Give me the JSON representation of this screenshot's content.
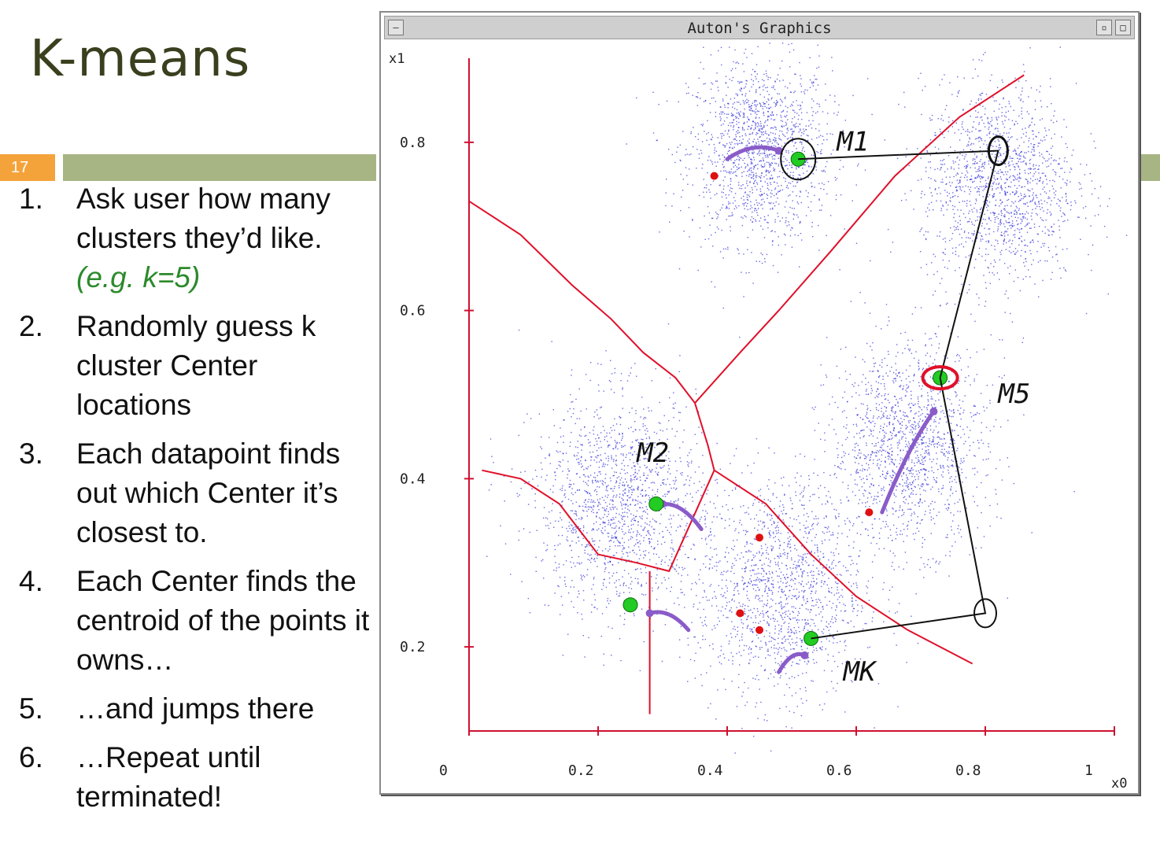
{
  "slide": {
    "title": "K-means",
    "number": "17",
    "steps": [
      {
        "num": "1.",
        "text": "Ask user how many clusters they’d like.",
        "example": "(e.g. k=5)"
      },
      {
        "num": "2.",
        "text": "Randomly guess k cluster Center locations"
      },
      {
        "num": "3.",
        "text": "Each datapoint finds out which Center it’s closest to."
      },
      {
        "num": "4.",
        "text": "Each Center finds the centroid of the points it owns…"
      },
      {
        "num": "5.",
        "text": "…and jumps there"
      },
      {
        "num": "6.",
        "text": "…Repeat until terminated!"
      }
    ]
  },
  "window": {
    "title": "Auton's Graphics",
    "minimize_icon": "minimize-icon",
    "close_icon": "close-icon"
  },
  "chart_data": {
    "type": "scatter",
    "title": "",
    "xlabel": "x0",
    "ylabel": "x1",
    "xlim": [
      0,
      1
    ],
    "ylim": [
      0.1,
      0.9
    ],
    "x_ticks": [
      "0",
      "0.2",
      "0.4",
      "0.6",
      "0.8",
      "1"
    ],
    "y_ticks": [
      "0.2",
      "0.4",
      "0.6",
      "0.8"
    ],
    "clusters": [
      {
        "name": "",
        "center": [
          0.45,
          0.79
        ],
        "spread": 0.055
      },
      {
        "name": "",
        "center": [
          0.82,
          0.75
        ],
        "spread": 0.06
      },
      {
        "name": "",
        "center": [
          0.68,
          0.44
        ],
        "spread": 0.06
      },
      {
        "name": "",
        "center": [
          0.23,
          0.37
        ],
        "spread": 0.065
      },
      {
        "name": "",
        "center": [
          0.48,
          0.27
        ],
        "spread": 0.065
      }
    ],
    "old_centers": [
      [
        0.38,
        0.76
      ],
      [
        0.45,
        0.33
      ],
      [
        0.42,
        0.24
      ],
      [
        0.45,
        0.22
      ],
      [
        0.62,
        0.36
      ]
    ],
    "new_centers": [
      [
        0.51,
        0.78
      ],
      [
        0.29,
        0.37
      ],
      [
        0.25,
        0.25
      ],
      [
        0.53,
        0.21
      ],
      [
        0.73,
        0.52
      ]
    ],
    "annotations": [
      "M1",
      "M2",
      "M5",
      "MK"
    ],
    "colors": {
      "points": "#2a2ad6",
      "boundaries": "#e0102a",
      "axes": "#d01030",
      "old_center": "#e01010",
      "new_center": "#22cc22",
      "arrows": "#8a5cc8",
      "ink": "#111111"
    }
  }
}
